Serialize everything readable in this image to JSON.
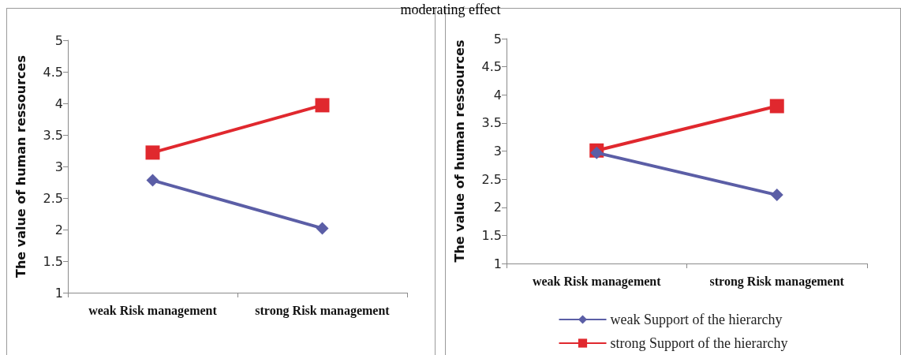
{
  "chart_data": [
    {
      "type": "line",
      "title": "moderating effect",
      "ylabel": "The value of human ressources",
      "categories": [
        "weak Risk management",
        "strong Risk management"
      ],
      "series": [
        {
          "color": "#5b5ea6",
          "values": [
            2.78,
            2.02
          ],
          "marker": "diamond"
        },
        {
          "color": "#e0282e",
          "values": [
            3.22,
            3.97
          ],
          "marker": "square"
        }
      ],
      "ylim": [
        1,
        5
      ],
      "yticks": [
        1,
        1.5,
        2,
        2.5,
        3,
        3.5,
        4,
        4.5,
        5
      ],
      "grid": false,
      "legend": false
    },
    {
      "type": "line",
      "ylabel": "The value of human ressources",
      "categories": [
        "weak Risk management",
        "strong Risk management"
      ],
      "series": [
        {
          "name": "weak Support of the hierarchy",
          "color": "#5b5ea6",
          "values": [
            2.97,
            2.22
          ],
          "marker": "diamond"
        },
        {
          "name": "strong Support of the hierarchy",
          "color": "#e0282e",
          "values": [
            3.01,
            3.8
          ],
          "marker": "square"
        }
      ],
      "ylim": [
        1,
        5
      ],
      "yticks": [
        1,
        1.5,
        2,
        2.5,
        3,
        3.5,
        4,
        4.5,
        5
      ],
      "grid": false,
      "legend": "bottom"
    }
  ]
}
